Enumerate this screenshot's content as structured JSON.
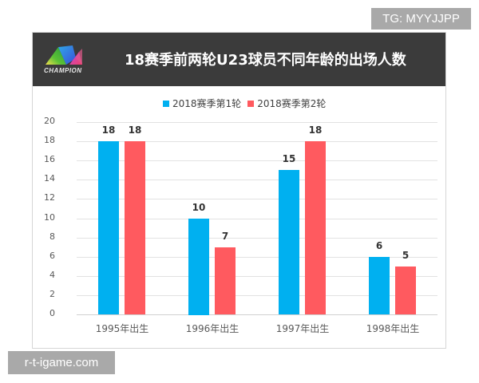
{
  "watermarks": {
    "top": "TG: MYYJJPP",
    "bottom": "r-t-igame.com"
  },
  "header": {
    "logo_text": "CHAMPION",
    "title": "18赛季前两轮U23球员不同年龄的出场人数"
  },
  "colors": {
    "series1": "#00b0f0",
    "series2": "#ff5a5f",
    "header_bg": "#3b3b3b"
  },
  "chart_data": {
    "type": "bar",
    "title": "18赛季前两轮U23球员不同年龄的出场人数",
    "categories": [
      "1995年出生",
      "1996年出生",
      "1997年出生",
      "1998年出生"
    ],
    "series": [
      {
        "name": "2018赛季第1轮",
        "color": "#00b0f0",
        "values": [
          18,
          10,
          15,
          6
        ]
      },
      {
        "name": "2018赛季第2轮",
        "color": "#ff5a5f",
        "values": [
          18,
          7,
          18,
          5
        ]
      }
    ],
    "xlabel": "",
    "ylabel": "",
    "ylim": [
      0,
      20
    ],
    "yticks": [
      0,
      2,
      4,
      6,
      8,
      10,
      12,
      14,
      16,
      18,
      20
    ],
    "grid": true,
    "legend_position": "top",
    "data_labels": true
  }
}
